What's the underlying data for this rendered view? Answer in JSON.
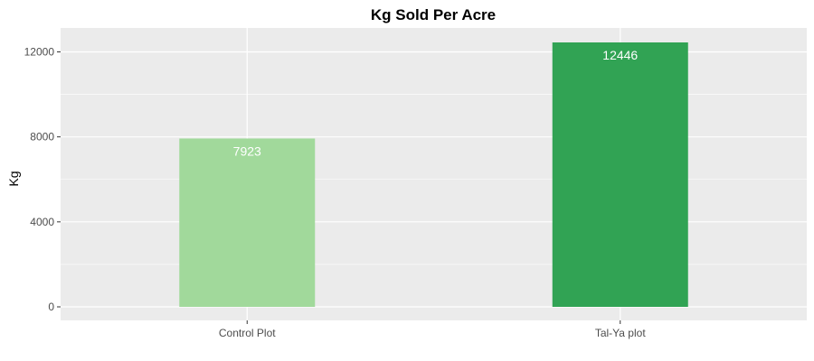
{
  "chart_data": {
    "type": "bar",
    "title": "Kg Sold Per Acre",
    "xlabel": "",
    "ylabel": "Kg",
    "categories": [
      "Control Plot",
      "Tal-Ya plot"
    ],
    "values": [
      7923,
      12446
    ],
    "data_labels": [
      "7923",
      "12446"
    ],
    "bar_colors": [
      "#a1d99b",
      "#31a354"
    ],
    "ylim": [
      0,
      12446
    ],
    "yticks": [
      0,
      4000,
      8000,
      12000
    ],
    "ytick_labels": [
      "0",
      "4000",
      "8000",
      "12000"
    ],
    "grid": true,
    "panel_background": "#ebebeb",
    "legend": "none"
  }
}
